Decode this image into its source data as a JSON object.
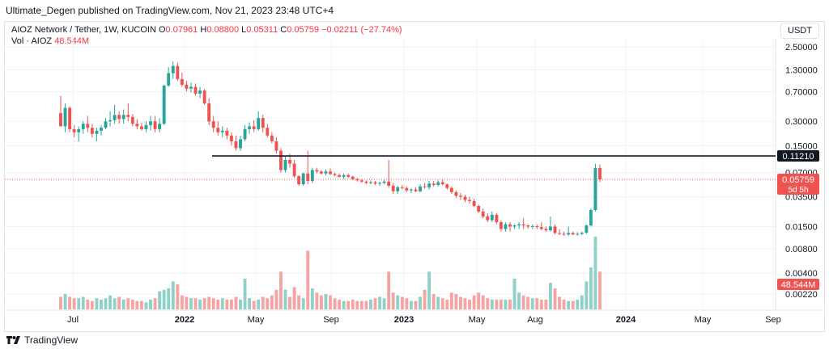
{
  "header": {
    "publisher": "Ultimate_Degen published on TradingView.com, Nov 21, 2023 23:48 UTC+4"
  },
  "legend": {
    "symbol": "AIOZ Network / Tether, 1W, KUCOIN",
    "o_label": "O",
    "o_value": "0.07961",
    "h_label": "H",
    "h_value": "0.08800",
    "l_label": "L",
    "l_value": "0.05311",
    "c_label": "C",
    "c_value": "0.05759",
    "change": "−0.02211 (−27.74%)",
    "vol_label": "Vol · AIOZ",
    "vol_value": "48.544M"
  },
  "unit_button": "USDT",
  "footer": {
    "brand": "TradingView"
  },
  "colors": {
    "up": "#26a69a",
    "down": "#ef5350",
    "up_vol": "#8fd0c8",
    "down_vol": "#f4a5a3",
    "line": "#131722",
    "grid": "#f0f3fa"
  },
  "chart_data": {
    "type": "candlestick",
    "interval": "1W",
    "scale": "log",
    "x_tick_labels": [
      "Jul",
      "2022",
      "May",
      "Sep",
      "2023",
      "May",
      "Aug",
      "2024",
      "May",
      "Sep"
    ],
    "y_tick_labels": [
      "2.50000",
      "1.30000",
      "0.70000",
      "0.30000",
      "0.15000",
      "0.07000",
      "0.03500",
      "0.01500",
      "0.00800",
      "0.00400",
      "0.00220"
    ],
    "y_tick_values": [
      2.5,
      1.3,
      0.7,
      0.3,
      0.15,
      0.07,
      0.035,
      0.015,
      0.008,
      0.004,
      0.0022
    ],
    "horizontal_line": {
      "value": 0.1121,
      "label": "0.11210"
    },
    "last_price": {
      "value": 0.05759,
      "label": "0.05759",
      "countdown": "5d 5h"
    },
    "last_volume_label": "48.544M",
    "candles": [
      [
        0.38,
        0.62,
        0.26,
        0.26,
        9
      ],
      [
        0.26,
        0.5,
        0.22,
        0.44,
        11
      ],
      [
        0.44,
        0.46,
        0.22,
        0.24,
        9
      ],
      [
        0.24,
        0.27,
        0.19,
        0.22,
        8
      ],
      [
        0.22,
        0.26,
        0.17,
        0.24,
        8
      ],
      [
        0.24,
        0.3,
        0.21,
        0.28,
        9
      ],
      [
        0.28,
        0.35,
        0.22,
        0.25,
        7
      ],
      [
        0.25,
        0.28,
        0.19,
        0.21,
        6
      ],
      [
        0.21,
        0.25,
        0.17,
        0.23,
        8
      ],
      [
        0.23,
        0.27,
        0.2,
        0.25,
        7
      ],
      [
        0.25,
        0.33,
        0.24,
        0.3,
        8
      ],
      [
        0.3,
        0.4,
        0.26,
        0.31,
        10
      ],
      [
        0.31,
        0.48,
        0.28,
        0.36,
        8
      ],
      [
        0.36,
        0.4,
        0.28,
        0.32,
        9
      ],
      [
        0.32,
        0.42,
        0.28,
        0.36,
        7
      ],
      [
        0.36,
        0.5,
        0.3,
        0.34,
        8
      ],
      [
        0.34,
        0.37,
        0.26,
        0.28,
        7
      ],
      [
        0.28,
        0.32,
        0.24,
        0.26,
        6
      ],
      [
        0.26,
        0.29,
        0.23,
        0.24,
        6
      ],
      [
        0.24,
        0.3,
        0.22,
        0.27,
        5
      ],
      [
        0.27,
        0.35,
        0.23,
        0.3,
        7
      ],
      [
        0.3,
        0.35,
        0.22,
        0.24,
        8
      ],
      [
        0.24,
        0.33,
        0.22,
        0.28,
        13
      ],
      [
        0.28,
        0.85,
        0.27,
        0.83,
        14
      ],
      [
        0.83,
        1.4,
        0.8,
        1.18,
        15
      ],
      [
        1.18,
        1.65,
        1.0,
        1.45,
        20
      ],
      [
        1.45,
        1.6,
        0.95,
        1.0,
        18
      ],
      [
        1.0,
        1.2,
        0.8,
        0.85,
        10
      ],
      [
        0.85,
        0.95,
        0.7,
        0.76,
        9
      ],
      [
        0.76,
        0.9,
        0.68,
        0.8,
        8
      ],
      [
        0.8,
        0.88,
        0.62,
        0.66,
        8
      ],
      [
        0.66,
        0.8,
        0.58,
        0.72,
        7
      ],
      [
        0.72,
        0.75,
        0.48,
        0.5,
        8
      ],
      [
        0.5,
        0.58,
        0.27,
        0.3,
        9
      ],
      [
        0.3,
        0.35,
        0.22,
        0.25,
        8
      ],
      [
        0.25,
        0.3,
        0.2,
        0.22,
        7
      ],
      [
        0.22,
        0.26,
        0.19,
        0.23,
        8
      ],
      [
        0.23,
        0.25,
        0.18,
        0.2,
        7
      ],
      [
        0.2,
        0.22,
        0.15,
        0.17,
        7
      ],
      [
        0.17,
        0.2,
        0.13,
        0.14,
        9
      ],
      [
        0.14,
        0.2,
        0.13,
        0.18,
        7
      ],
      [
        0.18,
        0.27,
        0.17,
        0.24,
        22
      ],
      [
        0.24,
        0.29,
        0.21,
        0.26,
        8
      ],
      [
        0.26,
        0.31,
        0.22,
        0.24,
        6
      ],
      [
        0.24,
        0.4,
        0.23,
        0.33,
        7
      ],
      [
        0.33,
        0.36,
        0.22,
        0.25,
        9
      ],
      [
        0.25,
        0.28,
        0.19,
        0.2,
        8
      ],
      [
        0.2,
        0.22,
        0.16,
        0.17,
        10
      ],
      [
        0.17,
        0.19,
        0.12,
        0.13,
        14
      ],
      [
        0.13,
        0.14,
        0.07,
        0.075,
        27
      ],
      [
        0.075,
        0.11,
        0.07,
        0.1,
        14
      ],
      [
        0.1,
        0.12,
        0.08,
        0.09,
        9
      ],
      [
        0.09,
        0.1,
        0.06,
        0.063,
        16
      ],
      [
        0.063,
        0.065,
        0.048,
        0.05,
        10
      ],
      [
        0.05,
        0.07,
        0.048,
        0.068,
        8
      ],
      [
        0.068,
        0.13,
        0.05,
        0.055,
        42
      ],
      [
        0.055,
        0.08,
        0.052,
        0.075,
        15
      ],
      [
        0.075,
        0.08,
        0.068,
        0.072,
        12
      ],
      [
        0.072,
        0.075,
        0.066,
        0.068,
        10
      ],
      [
        0.068,
        0.076,
        0.064,
        0.072,
        11
      ],
      [
        0.072,
        0.078,
        0.065,
        0.067,
        10
      ],
      [
        0.067,
        0.07,
        0.063,
        0.065,
        8
      ],
      [
        0.065,
        0.068,
        0.06,
        0.062,
        7
      ],
      [
        0.062,
        0.068,
        0.058,
        0.065,
        6
      ],
      [
        0.065,
        0.068,
        0.06,
        0.062,
        6
      ],
      [
        0.062,
        0.064,
        0.056,
        0.058,
        7
      ],
      [
        0.058,
        0.06,
        0.054,
        0.056,
        6
      ],
      [
        0.056,
        0.058,
        0.052,
        0.054,
        6
      ],
      [
        0.054,
        0.056,
        0.05,
        0.052,
        6
      ],
      [
        0.052,
        0.056,
        0.05,
        0.053,
        7
      ],
      [
        0.053,
        0.055,
        0.049,
        0.051,
        8
      ],
      [
        0.051,
        0.054,
        0.048,
        0.052,
        9
      ],
      [
        0.052,
        0.058,
        0.05,
        0.054,
        8
      ],
      [
        0.054,
        0.1,
        0.045,
        0.048,
        27
      ],
      [
        0.048,
        0.052,
        0.038,
        0.041,
        12
      ],
      [
        0.041,
        0.048,
        0.038,
        0.046,
        10
      ],
      [
        0.046,
        0.049,
        0.043,
        0.045,
        9
      ],
      [
        0.045,
        0.047,
        0.04,
        0.042,
        8
      ],
      [
        0.042,
        0.045,
        0.039,
        0.043,
        6
      ],
      [
        0.043,
        0.046,
        0.04,
        0.041,
        6
      ],
      [
        0.041,
        0.05,
        0.04,
        0.047,
        9
      ],
      [
        0.047,
        0.052,
        0.044,
        0.046,
        14
      ],
      [
        0.046,
        0.055,
        0.043,
        0.051,
        27
      ],
      [
        0.051,
        0.055,
        0.047,
        0.049,
        11
      ],
      [
        0.049,
        0.056,
        0.047,
        0.053,
        9
      ],
      [
        0.053,
        0.058,
        0.049,
        0.05,
        8
      ],
      [
        0.05,
        0.051,
        0.043,
        0.045,
        7
      ],
      [
        0.045,
        0.047,
        0.038,
        0.04,
        12
      ],
      [
        0.04,
        0.042,
        0.034,
        0.036,
        11
      ],
      [
        0.036,
        0.039,
        0.032,
        0.035,
        9
      ],
      [
        0.035,
        0.037,
        0.03,
        0.032,
        8
      ],
      [
        0.032,
        0.035,
        0.029,
        0.031,
        7
      ],
      [
        0.031,
        0.033,
        0.026,
        0.027,
        10
      ],
      [
        0.027,
        0.028,
        0.022,
        0.023,
        12
      ],
      [
        0.023,
        0.025,
        0.019,
        0.02,
        10
      ],
      [
        0.02,
        0.022,
        0.017,
        0.018,
        8
      ],
      [
        0.018,
        0.023,
        0.017,
        0.021,
        7
      ],
      [
        0.021,
        0.022,
        0.016,
        0.017,
        7
      ],
      [
        0.017,
        0.018,
        0.013,
        0.014,
        7
      ],
      [
        0.014,
        0.017,
        0.013,
        0.016,
        7
      ],
      [
        0.016,
        0.017,
        0.013,
        0.015,
        7
      ],
      [
        0.015,
        0.016,
        0.014,
        0.0155,
        22
      ],
      [
        0.0155,
        0.017,
        0.014,
        0.016,
        12
      ],
      [
        0.016,
        0.019,
        0.014,
        0.0155,
        10
      ],
      [
        0.0155,
        0.016,
        0.014,
        0.015,
        9
      ],
      [
        0.015,
        0.016,
        0.014,
        0.0152,
        8
      ],
      [
        0.0152,
        0.016,
        0.014,
        0.0148,
        8
      ],
      [
        0.0148,
        0.017,
        0.0135,
        0.014,
        7
      ],
      [
        0.014,
        0.015,
        0.013,
        0.0135,
        7
      ],
      [
        0.0135,
        0.02,
        0.013,
        0.015,
        19
      ],
      [
        0.015,
        0.016,
        0.012,
        0.0125,
        15
      ],
      [
        0.0125,
        0.014,
        0.0118,
        0.0122,
        9
      ],
      [
        0.0122,
        0.013,
        0.0116,
        0.012,
        7
      ],
      [
        0.012,
        0.015,
        0.0115,
        0.0125,
        6
      ],
      [
        0.0125,
        0.013,
        0.0118,
        0.012,
        6
      ],
      [
        0.012,
        0.0128,
        0.0116,
        0.0122,
        7
      ],
      [
        0.0122,
        0.013,
        0.0118,
        0.0126,
        10
      ],
      [
        0.0126,
        0.016,
        0.0122,
        0.0155,
        20
      ],
      [
        0.0155,
        0.025,
        0.015,
        0.024,
        30
      ],
      [
        0.024,
        0.09,
        0.023,
        0.0796,
        52
      ],
      [
        0.0796,
        0.088,
        0.0531,
        0.05759,
        27
      ]
    ]
  }
}
